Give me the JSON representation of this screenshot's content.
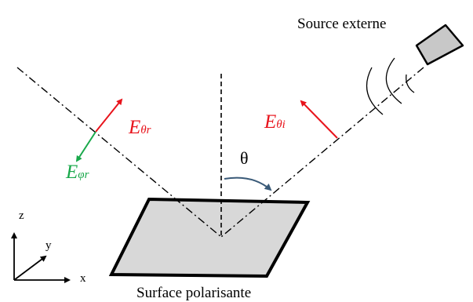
{
  "source_label": "Source externe",
  "surface_label": "Surface polarisante",
  "angle_label": "θ",
  "fields": {
    "incident_theta": {
      "main": "E",
      "sub": "θi"
    },
    "reflected_theta": {
      "main": "E",
      "sub": "θr"
    },
    "reflected_phi": {
      "main": "E",
      "sub": "φr"
    }
  },
  "axes": {
    "z": "z",
    "y": "y",
    "x": "x"
  },
  "colors": {
    "red": "#e8131b",
    "green": "#18a84a",
    "surface_fill": "#d8d8d8",
    "source_fill": "#c8c8c8",
    "angle_arrow": "#3a5a78"
  }
}
